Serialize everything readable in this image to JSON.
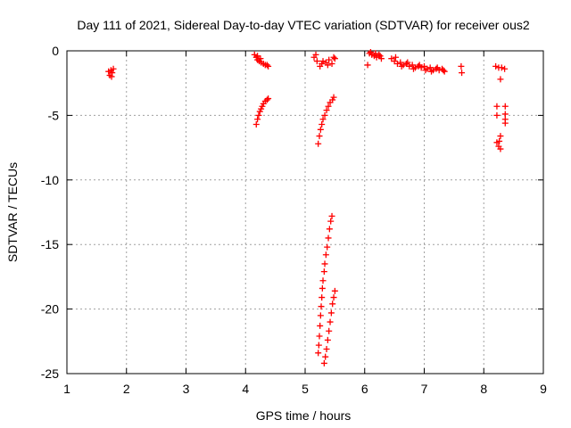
{
  "chart_data": {
    "type": "scatter",
    "title": "Day 111 of 2021, Sidereal Day-to-day VTEC variation (SDTVAR) for receiver ous2",
    "xlabel": "GPS time / hours",
    "ylabel": "SDTVAR / TECUs",
    "xlim": [
      1,
      9
    ],
    "ylim": [
      -25,
      0
    ],
    "xticks": [
      1,
      2,
      3,
      4,
      5,
      6,
      7,
      8,
      9
    ],
    "yticks": [
      0,
      -5,
      -10,
      -15,
      -20,
      -25
    ],
    "grid": true,
    "marker": "+",
    "color": "#ff0000",
    "series": [
      {
        "name": "SDTVAR",
        "points": [
          [
            1.7,
            -1.6
          ],
          [
            1.72,
            -1.9
          ],
          [
            1.74,
            -1.5
          ],
          [
            1.75,
            -2.0
          ],
          [
            1.76,
            -1.7
          ],
          [
            1.78,
            -1.4
          ],
          [
            4.15,
            -0.3
          ],
          [
            4.18,
            -0.5
          ],
          [
            4.2,
            -0.7
          ],
          [
            4.23,
            -0.8
          ],
          [
            4.26,
            -0.9
          ],
          [
            4.3,
            -1.0
          ],
          [
            4.33,
            -1.1
          ],
          [
            4.36,
            -1.1
          ],
          [
            4.38,
            -1.2
          ],
          [
            4.2,
            -0.4
          ],
          [
            4.25,
            -0.6
          ],
          [
            4.18,
            -5.7
          ],
          [
            4.2,
            -5.3
          ],
          [
            4.22,
            -5.0
          ],
          [
            4.24,
            -4.7
          ],
          [
            4.26,
            -4.5
          ],
          [
            4.28,
            -4.3
          ],
          [
            4.3,
            -4.1
          ],
          [
            4.33,
            -3.9
          ],
          [
            4.36,
            -3.8
          ],
          [
            4.38,
            -3.7
          ],
          [
            5.15,
            -0.5
          ],
          [
            5.2,
            -0.8
          ],
          [
            5.25,
            -1.2
          ],
          [
            5.3,
            -0.8
          ],
          [
            5.35,
            -0.9
          ],
          [
            5.4,
            -0.7
          ],
          [
            5.45,
            -1.0
          ],
          [
            5.5,
            -0.6
          ],
          [
            5.18,
            -0.3
          ],
          [
            5.38,
            -1.1
          ],
          [
            5.48,
            -0.5
          ],
          [
            5.28,
            -1.0
          ],
          [
            5.22,
            -7.2
          ],
          [
            5.24,
            -6.6
          ],
          [
            5.26,
            -6.1
          ],
          [
            5.28,
            -5.7
          ],
          [
            5.3,
            -5.3
          ],
          [
            5.33,
            -5.0
          ],
          [
            5.36,
            -4.6
          ],
          [
            5.39,
            -4.3
          ],
          [
            5.42,
            -4.0
          ],
          [
            5.46,
            -3.8
          ],
          [
            5.48,
            -3.6
          ],
          [
            5.22,
            -23.4
          ],
          [
            5.23,
            -22.8
          ],
          [
            5.24,
            -22.1
          ],
          [
            5.25,
            -21.3
          ],
          [
            5.26,
            -20.5
          ],
          [
            5.27,
            -19.8
          ],
          [
            5.28,
            -19.1
          ],
          [
            5.29,
            -18.4
          ],
          [
            5.3,
            -17.8
          ],
          [
            5.32,
            -17.1
          ],
          [
            5.33,
            -16.5
          ],
          [
            5.35,
            -15.8
          ],
          [
            5.37,
            -15.2
          ],
          [
            5.39,
            -14.5
          ],
          [
            5.41,
            -13.8
          ],
          [
            5.43,
            -13.2
          ],
          [
            5.45,
            -12.8
          ],
          [
            5.32,
            -24.2
          ],
          [
            5.34,
            -23.7
          ],
          [
            5.36,
            -23.1
          ],
          [
            5.38,
            -22.4
          ],
          [
            5.4,
            -21.7
          ],
          [
            5.42,
            -21.0
          ],
          [
            5.44,
            -20.3
          ],
          [
            5.46,
            -19.6
          ],
          [
            5.48,
            -19.1
          ],
          [
            5.5,
            -18.6
          ],
          [
            6.05,
            -1.1
          ],
          [
            6.08,
            -0.2
          ],
          [
            6.12,
            -0.3
          ],
          [
            6.16,
            -0.4
          ],
          [
            6.2,
            -0.5
          ],
          [
            6.24,
            -0.3
          ],
          [
            6.28,
            -0.6
          ],
          [
            6.1,
            -0.1
          ],
          [
            6.18,
            -0.2
          ],
          [
            6.26,
            -0.4
          ],
          [
            6.45,
            -0.6
          ],
          [
            6.5,
            -0.8
          ],
          [
            6.55,
            -1.0
          ],
          [
            6.6,
            -0.9
          ],
          [
            6.65,
            -1.1
          ],
          [
            6.7,
            -1.0
          ],
          [
            6.75,
            -1.2
          ],
          [
            6.8,
            -1.1
          ],
          [
            6.85,
            -1.3
          ],
          [
            6.9,
            -1.2
          ],
          [
            6.95,
            -1.3
          ],
          [
            7.0,
            -1.2
          ],
          [
            7.05,
            -1.4
          ],
          [
            7.1,
            -1.3
          ],
          [
            7.15,
            -1.5
          ],
          [
            7.2,
            -1.4
          ],
          [
            7.25,
            -1.5
          ],
          [
            7.3,
            -1.4
          ],
          [
            7.34,
            -1.6
          ],
          [
            6.52,
            -0.5
          ],
          [
            6.62,
            -1.2
          ],
          [
            6.72,
            -0.9
          ],
          [
            6.82,
            -1.4
          ],
          [
            6.92,
            -1.1
          ],
          [
            7.02,
            -1.5
          ],
          [
            7.12,
            -1.6
          ],
          [
            7.22,
            -1.3
          ],
          [
            7.32,
            -1.5
          ],
          [
            7.62,
            -1.2
          ],
          [
            7.63,
            -1.7
          ],
          [
            8.2,
            -1.2
          ],
          [
            8.25,
            -1.3
          ],
          [
            8.3,
            -1.3
          ],
          [
            8.35,
            -1.4
          ],
          [
            8.28,
            -2.2
          ],
          [
            8.22,
            -4.3
          ],
          [
            8.22,
            -5.0
          ],
          [
            8.36,
            -4.3
          ],
          [
            8.36,
            -4.9
          ],
          [
            8.36,
            -5.3
          ],
          [
            8.36,
            -5.6
          ],
          [
            8.22,
            -7.1
          ],
          [
            8.25,
            -7.4
          ],
          [
            8.28,
            -7.6
          ],
          [
            8.28,
            -6.6
          ],
          [
            8.26,
            -7.0
          ]
        ]
      }
    ]
  }
}
